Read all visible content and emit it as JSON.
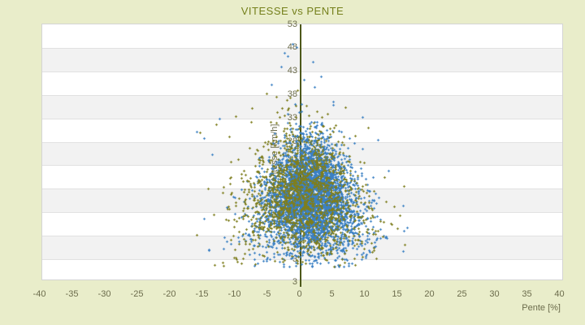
{
  "page": {
    "background": "#e9edca"
  },
  "title": "VITESSE vs PENTE",
  "chart_data": {
    "type": "scatter",
    "title": "VITESSE vs PENTE",
    "xlabel": "Pente [%]",
    "ylabel": "Vitesse [km/h]",
    "x_ticks": [
      -40,
      -35,
      -30,
      -25,
      -20,
      -15,
      -10,
      -5,
      0,
      5,
      10,
      15,
      20,
      25,
      30,
      35,
      40
    ],
    "y_ticks": [
      53,
      48,
      43,
      38,
      33,
      28,
      23,
      18,
      13,
      8,
      3
    ],
    "y_axis_bottom_label": "3",
    "xlim": [
      -39.7,
      40.3
    ],
    "ylim": [
      -1.3,
      53
    ],
    "y_axis_at_x": 0,
    "grid": "alternating-horizontal-bands",
    "legend": "none",
    "colors": {
      "plot_background": "#ffffff",
      "band_gray": "#f2f2f2",
      "band_line": "#e1e1e1",
      "plot_border": "#d4d4d4",
      "axis_line": "#4d581a",
      "tick_label": "#6c6c4c",
      "title": "#75801c",
      "series_blue": "#3b80c4",
      "series_olive": "#7e7e1e"
    },
    "series": [
      {
        "name": "vitesse-points-bleus",
        "color": "#3b80c4",
        "marker": "plus-3px",
        "generation": {
          "seed": 1337,
          "count": 4000,
          "x_mean": 1.3,
          "x_sigma": 4.6,
          "y_mean": 15.8,
          "y_sigma": 6.2,
          "cone": 0.022,
          "cone_base_y": 6,
          "x_range": [
            -15.5,
            16.5
          ],
          "y_range": [
            1.2,
            37.5
          ]
        },
        "outliers": [
          [
            -1.2,
            48.9
          ],
          [
            -0.6,
            48.2
          ],
          [
            -2.4,
            46.9
          ],
          [
            -1.9,
            46.2
          ],
          [
            1.9,
            45.0
          ],
          [
            -3.0,
            44.0
          ],
          [
            3.2,
            42.0
          ],
          [
            0.5,
            41.3
          ],
          [
            -4.5,
            40.2
          ],
          [
            2.2,
            39.6
          ],
          [
            5.1,
            36.6
          ],
          [
            9.5,
            33.2
          ],
          [
            -12.5,
            33.0
          ],
          [
            -14.8,
            28.8
          ],
          [
            -15.9,
            30.1
          ],
          [
            -13.6,
            25.4
          ],
          [
            11.9,
            28.4
          ],
          [
            13.6,
            21.9
          ],
          [
            15.8,
            14.4
          ],
          [
            16.4,
            9.7
          ]
        ]
      },
      {
        "name": "vitesse-points-olive",
        "color": "#7e7e1e",
        "marker": "plus-3px",
        "generation": {
          "seed": 777,
          "count": 1600,
          "x_mean": 0.2,
          "x_sigma": 5.8,
          "y_mean": 16.3,
          "y_sigma": 6.9,
          "cone": 0.02,
          "cone_base_y": 6,
          "x_range": [
            -16.2,
            16.2
          ],
          "y_range": [
            1.5,
            38.2
          ]
        },
        "outliers": [
          [
            -3.7,
            37.6
          ],
          [
            -5.2,
            38.3
          ],
          [
            -2.1,
            36.9
          ],
          [
            -7.4,
            35.1
          ],
          [
            -9.9,
            33.4
          ],
          [
            -15.5,
            30.0
          ],
          [
            -12.9,
            31.8
          ],
          [
            -11.0,
            29.1
          ],
          [
            14.9,
            9.5
          ],
          [
            15.3,
            12.3
          ],
          [
            -14.2,
            18.1
          ],
          [
            12.9,
            20.4
          ],
          [
            10.4,
            31.0
          ],
          [
            6.9,
            35.3
          ],
          [
            -0.4,
            38.9
          ],
          [
            16.1,
            6.2
          ]
        ]
      }
    ]
  }
}
